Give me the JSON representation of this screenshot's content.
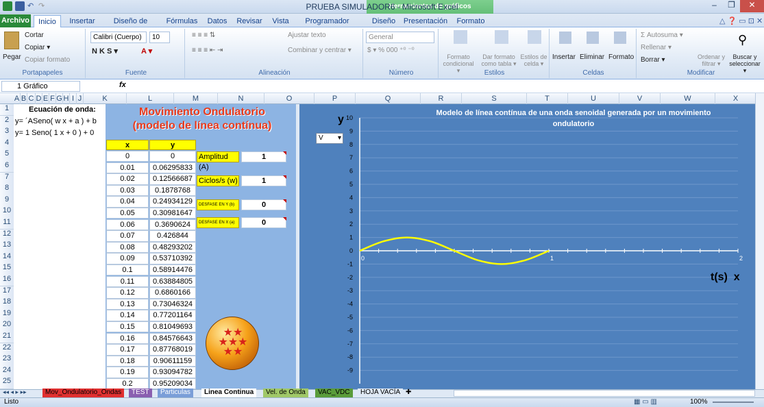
{
  "app": {
    "title": "PRUEBA SIMULADOR6 - Microsoft Excel",
    "contextual_band": "Herramientas de gráficos"
  },
  "tabs": [
    "Archivo",
    "Inicio",
    "Insertar",
    "Diseño de página",
    "Fórmulas",
    "Datos",
    "Revisar",
    "Vista",
    "Programador",
    "Diseño",
    "Presentación",
    "Formato"
  ],
  "ribbon": {
    "portapapeles": {
      "paste": "Pegar",
      "cut": "Cortar",
      "copy": "Copiar ▾",
      "format": "Copiar formato",
      "label": "Portapapeles"
    },
    "fuente": {
      "font": "Calibri (Cuerpo)",
      "size": "10",
      "label": "Fuente"
    },
    "alineacion": {
      "wrap": "Ajustar texto",
      "merge": "Combinar y centrar ▾",
      "label": "Alineación"
    },
    "numero": {
      "format": "General",
      "label": "Número"
    },
    "estilos": {
      "cond": "Formato condicional ▾",
      "table": "Dar formato como tabla ▾",
      "cell": "Estilos de celda ▾",
      "label": "Estilos"
    },
    "celdas": {
      "insert": "Insertar",
      "delete": "Eliminar",
      "format": "Formato",
      "label": "Celdas"
    },
    "modificar": {
      "autosum": "Σ Autosuma ▾",
      "fill": "Rellenar ▾",
      "clear": "Borrar ▾",
      "sort": "Ordenar y filtrar ▾",
      "find": "Buscar y seleccionar ▾",
      "label": "Modificar"
    }
  },
  "formula_bar": {
    "name_box": "1 Gráfico",
    "fx": "fx",
    "formula": ""
  },
  "columns": [
    "A",
    "B",
    "C",
    "D",
    "E",
    "F",
    "G",
    "H",
    "I",
    "J",
    "K",
    "L",
    "M",
    "N",
    "O",
    "P",
    "Q",
    "R",
    "S",
    "T",
    "U",
    "V",
    "W",
    "X"
  ],
  "rows": [
    "1",
    "2",
    "3",
    "4",
    "5",
    "6",
    "7",
    "8",
    "9",
    "10",
    "11",
    "12",
    "13",
    "14",
    "15",
    "16",
    "17",
    "18",
    "19",
    "20",
    "21",
    "22",
    "23",
    "24",
    "25"
  ],
  "sheet": {
    "a1": "Ecuación de onda:",
    "a2": "y= ´ASeno( w x  + a ) +  b",
    "a3": "y= 1  Seno(  1 x + 0 )  + 0",
    "heading1": "Movimiento Ondulatorio",
    "heading2": "(modelo de línea contínua)",
    "col_x": "x",
    "col_y": "y",
    "x_values": [
      "0",
      "0.01",
      "0.02",
      "0.03",
      "0.04",
      "0.05",
      "0.06",
      "0.07",
      "0.08",
      "0.09",
      "0.1",
      "0.11",
      "0.12",
      "0.13",
      "0.14",
      "0.15",
      "0.16",
      "0.17",
      "0.18",
      "0.19",
      "0.2"
    ],
    "y_values": [
      "0",
      "0.06295833",
      "0.12566687",
      "0.1878768",
      "0.24934129",
      "0.30981647",
      "0.3690624",
      "0.426844",
      "0.48293202",
      "0.53710392",
      "0.58914476",
      "0.63884805",
      "0.6860166",
      "0.73046324",
      "0.77201164",
      "0.81049693",
      "0.84576643",
      "0.87768019",
      "0.90611159",
      "0.93094782",
      "0.95209034"
    ],
    "params": [
      {
        "label": "Amplitud (A)",
        "value": "1"
      },
      {
        "label": "Ciclos/s (w)",
        "value": "1"
      },
      {
        "label": "DESFASE EN Y (b)",
        "value": "0"
      },
      {
        "label": "DESFASE EN X (a)",
        "value": "0"
      }
    ]
  },
  "chart_data": {
    "type": "line",
    "title": "Modelo de línea contínua de una onda senoidal generada por un movimiento ondulatorio",
    "xlabel": "t(s)  x",
    "ylabel": "y",
    "dropdown": "V",
    "xlim": [
      0,
      2
    ],
    "ylim": [
      -10,
      10
    ],
    "yticks": [
      "10",
      "9",
      "8",
      "7",
      "6",
      "5",
      "4",
      "3",
      "2",
      "1",
      "0",
      "-1",
      "-2",
      "-3",
      "-4",
      "-5",
      "-6",
      "-7",
      "-8",
      "-9"
    ],
    "xticks": [
      "0",
      "1",
      "2"
    ],
    "series": [
      {
        "color": "#ffff00",
        "x": [
          0,
          0.125,
          0.25,
          0.375,
          0.5,
          0.625,
          0.75,
          0.875,
          1
        ],
        "values": [
          0,
          0.71,
          1,
          0.71,
          0,
          -0.71,
          -1,
          -0.71,
          0
        ]
      }
    ],
    "grid": true
  },
  "sheet_tabs": [
    "Mov_Ondulatorio_Ondas",
    "TEST",
    "Particulas",
    "Linea Continua",
    "Vel. de Onda",
    "VAC_VDC",
    "HOJA VACÍA"
  ],
  "status": {
    "ready": "Listo",
    "zoom": "100%"
  },
  "colors": {
    "accent": "#2a8a3a",
    "chart_bg": "#4f81bd",
    "highlight": "#ffff00"
  }
}
